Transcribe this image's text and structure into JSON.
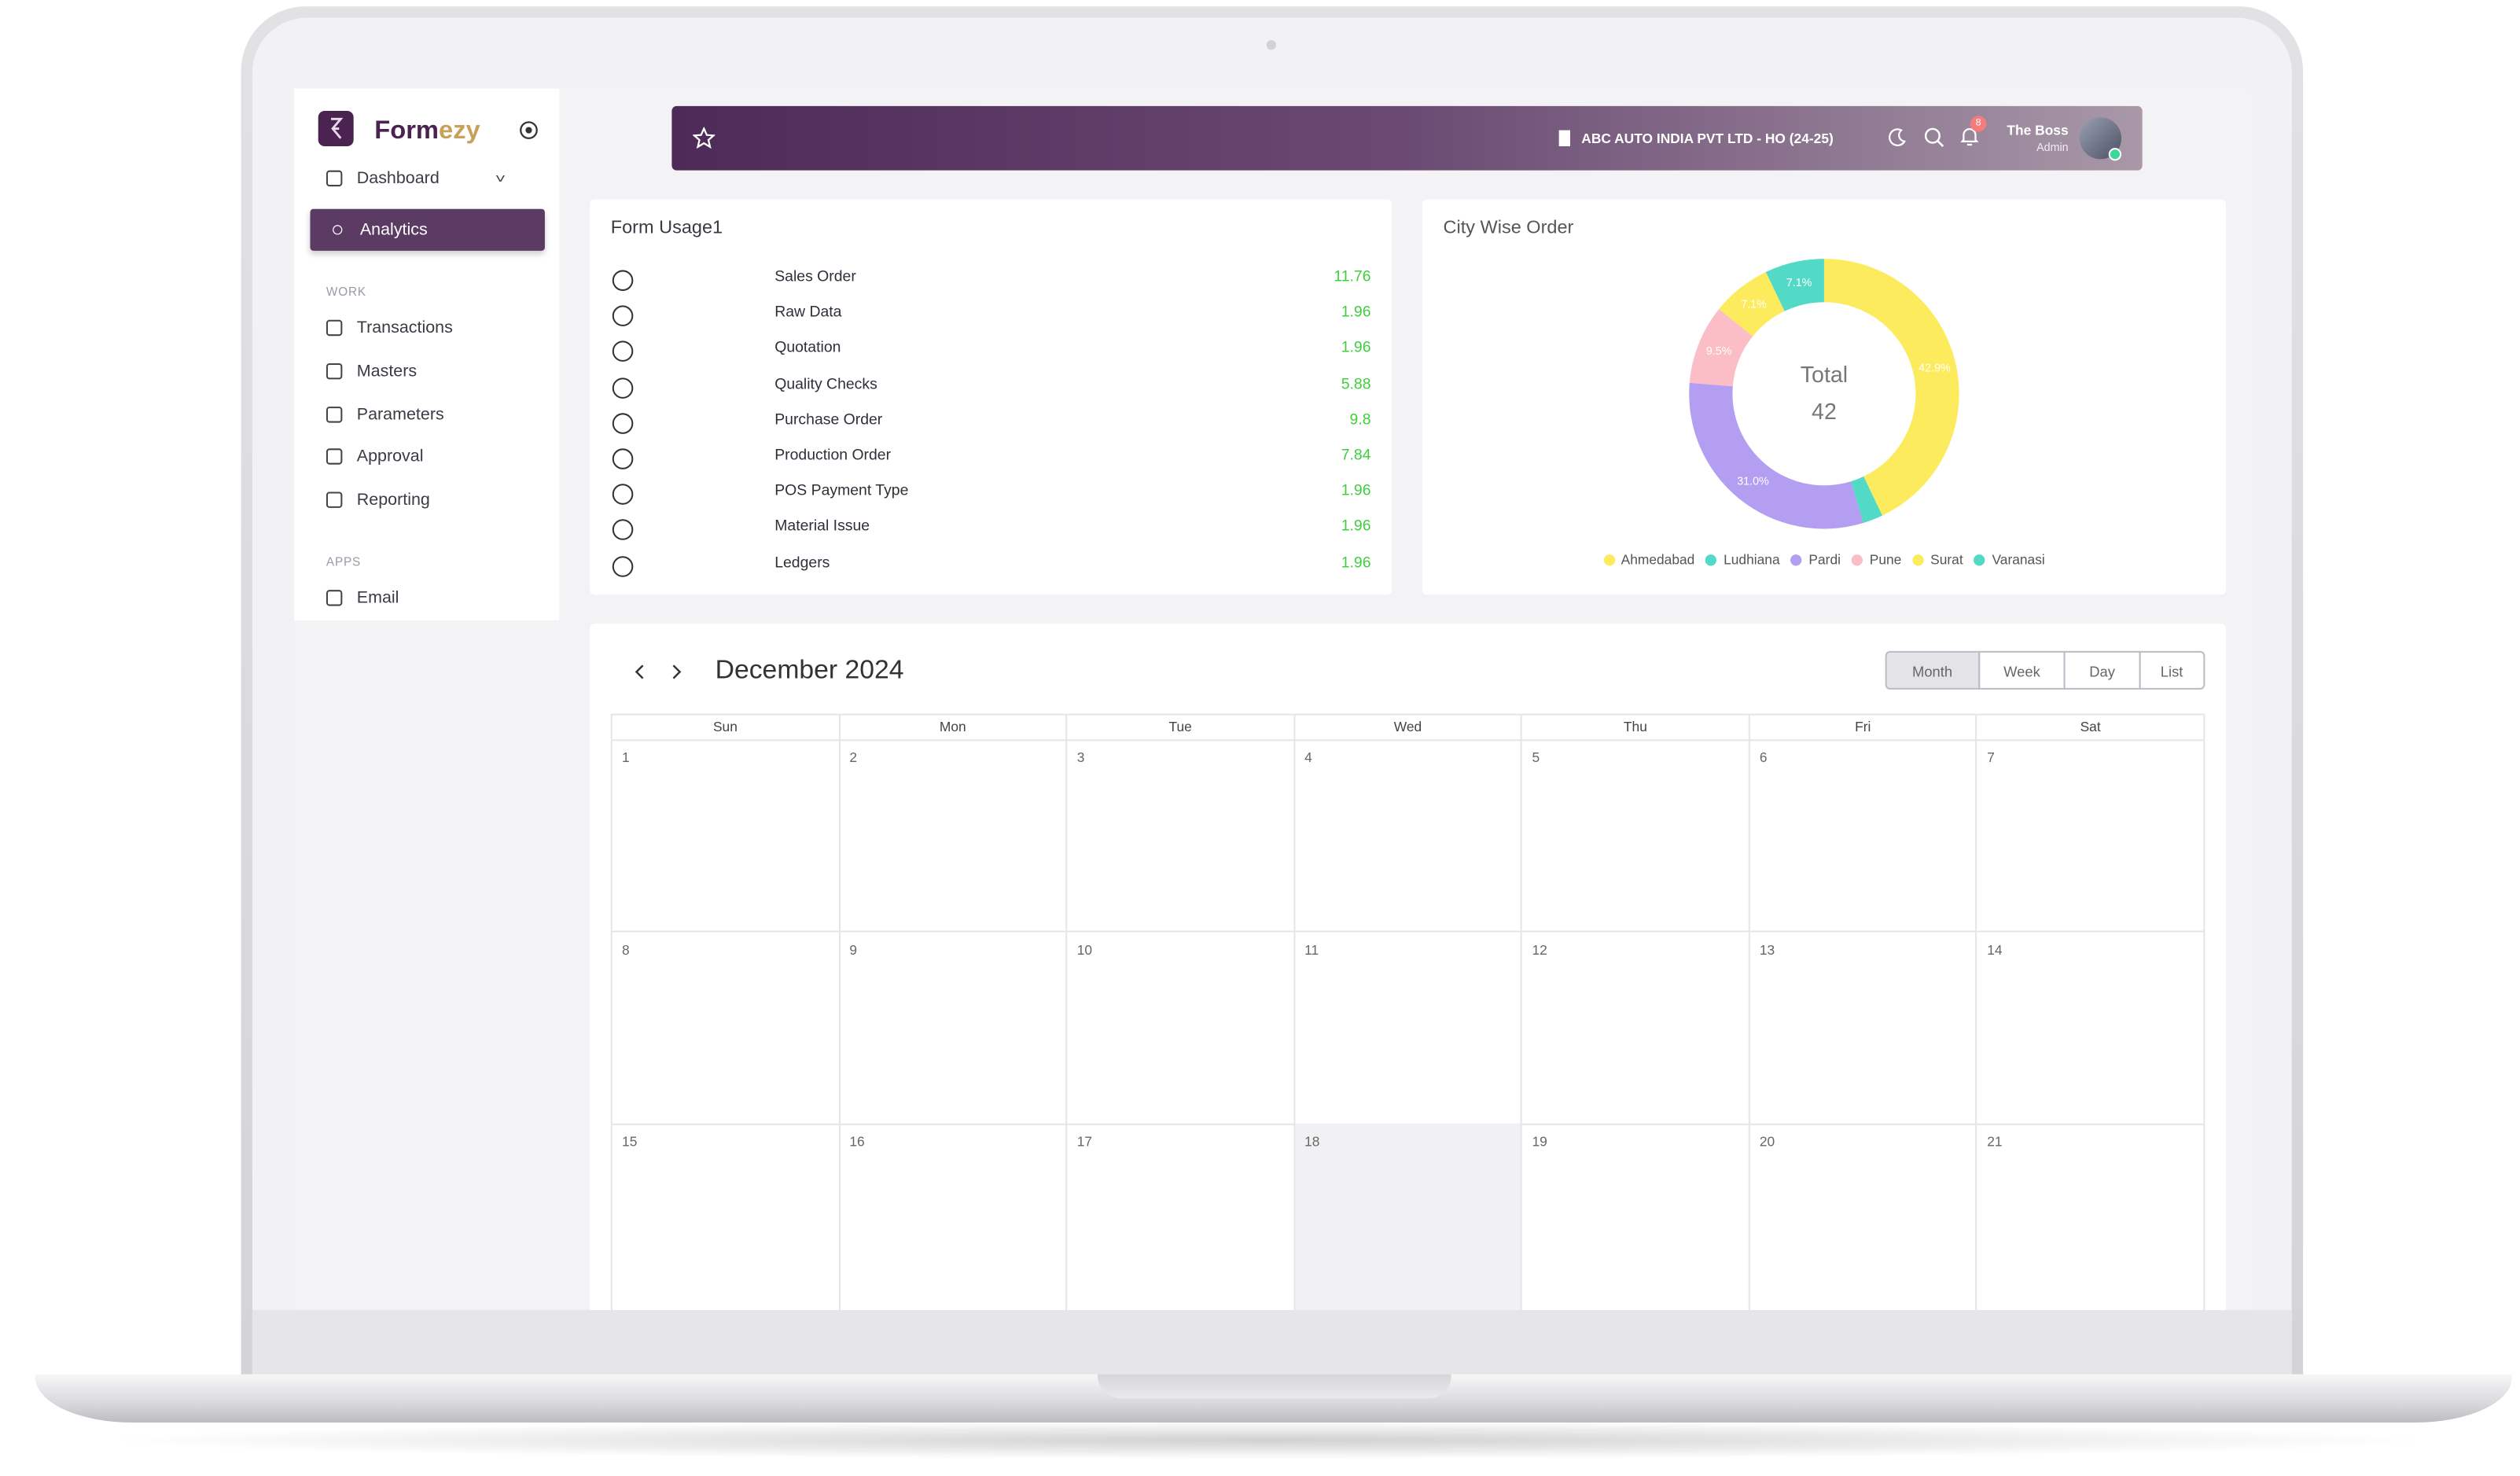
{
  "sidebar": {
    "brand_1": "Form",
    "brand_2": "ezy",
    "items": [
      {
        "label": "Dashboard"
      },
      {
        "label": "Analytics"
      }
    ],
    "sections": [
      {
        "title": "WORK",
        "items": [
          "Transactions",
          "Masters",
          "Parameters",
          "Approval",
          "Reporting"
        ]
      },
      {
        "title": "APPS",
        "items": [
          "Email"
        ]
      }
    ]
  },
  "header": {
    "company": "ABC AUTO INDIA PVT LTD - HO (24-25)",
    "notifications": 8,
    "user_name": "The Boss",
    "user_role": "Admin"
  },
  "form_usage": {
    "title": "Form Usage1",
    "rows": [
      {
        "name": "Sales Order",
        "value": 11.76
      },
      {
        "name": "Raw Data",
        "value": 1.96
      },
      {
        "name": "Quotation",
        "value": 1.96
      },
      {
        "name": "Quality Checks",
        "value": 5.88
      },
      {
        "name": "Purchase Order",
        "value": 9.8
      },
      {
        "name": "Production Order",
        "value": 7.84
      },
      {
        "name": "POS Payment Type",
        "value": 1.96
      },
      {
        "name": "Material Issue",
        "value": 1.96
      },
      {
        "name": "Ledgers",
        "value": 1.96
      }
    ]
  },
  "chart_data": {
    "type": "donut",
    "title": "City Wise Order",
    "center_label": "Total",
    "center_value": 42,
    "categories": [
      "Ahmedabad",
      "Ludhiana",
      "Pardi",
      "Pune",
      "Surat",
      "Varanasi"
    ],
    "values": [
      42.9,
      2.4,
      31.0,
      9.5,
      7.1,
      7.1
    ],
    "value_labels": [
      "42.9%",
      null,
      "31.0%",
      "9.5%",
      "7.1%",
      "7.1%"
    ],
    "colors": [
      "#fdeb5e",
      "#52dac6",
      "#b39ef2",
      "#fbbdc6",
      "#fdeb5e",
      "#52dac6"
    ],
    "legend": "bottom"
  },
  "calendar": {
    "title": "December 2024",
    "views": [
      "Month",
      "Week",
      "Day",
      "List"
    ],
    "weekdays": [
      "Sun",
      "Mon",
      "Tue",
      "Wed",
      "Thu",
      "Fri",
      "Sat"
    ],
    "weeks": [
      [
        1,
        2,
        3,
        4,
        5,
        6,
        7
      ],
      [
        8,
        9,
        10,
        11,
        12,
        13,
        14
      ],
      [
        15,
        16,
        17,
        18,
        19,
        20,
        21
      ]
    ]
  }
}
